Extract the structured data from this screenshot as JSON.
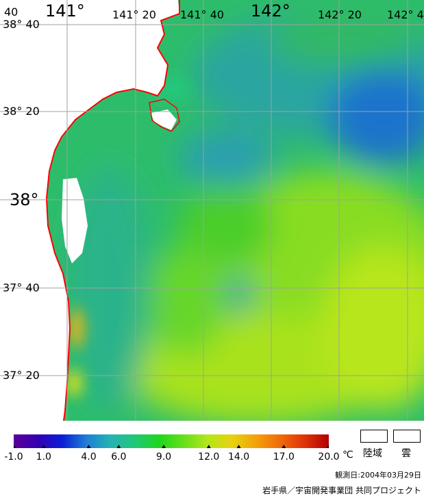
{
  "map": {
    "top_left_number": "40",
    "lon_labels": [
      "141°",
      "141° 20",
      "141° 40",
      "142°",
      "142° 20",
      "142° 4"
    ],
    "lat_labels": [
      "38° 40",
      "38° 20",
      "38°",
      "37° 40",
      "37° 20"
    ]
  },
  "colorbar": {
    "colors": [
      "#5c0099",
      "#3300b3",
      "#0a1fd6",
      "#1f7fd6",
      "#25b3b3",
      "#22c77a",
      "#1ed61e",
      "#66e01a",
      "#b3e61a",
      "#e6d20f",
      "#f2a20a",
      "#f06a0a",
      "#e0320a",
      "#b00000"
    ],
    "ticks": [
      "-1.0",
      "1.0",
      "4.0",
      "6.0",
      "9.0",
      "12.0",
      "14.0",
      "17.0",
      "20.0"
    ],
    "tick_values": [
      -1.0,
      1.0,
      4.0,
      6.0,
      9.0,
      12.0,
      14.0,
      17.0,
      20.0
    ],
    "min": -1.0,
    "max": 20.0,
    "unit": "℃"
  },
  "legend": {
    "land": "陸域",
    "cloud": "雲"
  },
  "observation_date": "観測日:2004年03月29日",
  "credits": "岩手県／宇宙開発事業団 共同プロジェクト"
}
